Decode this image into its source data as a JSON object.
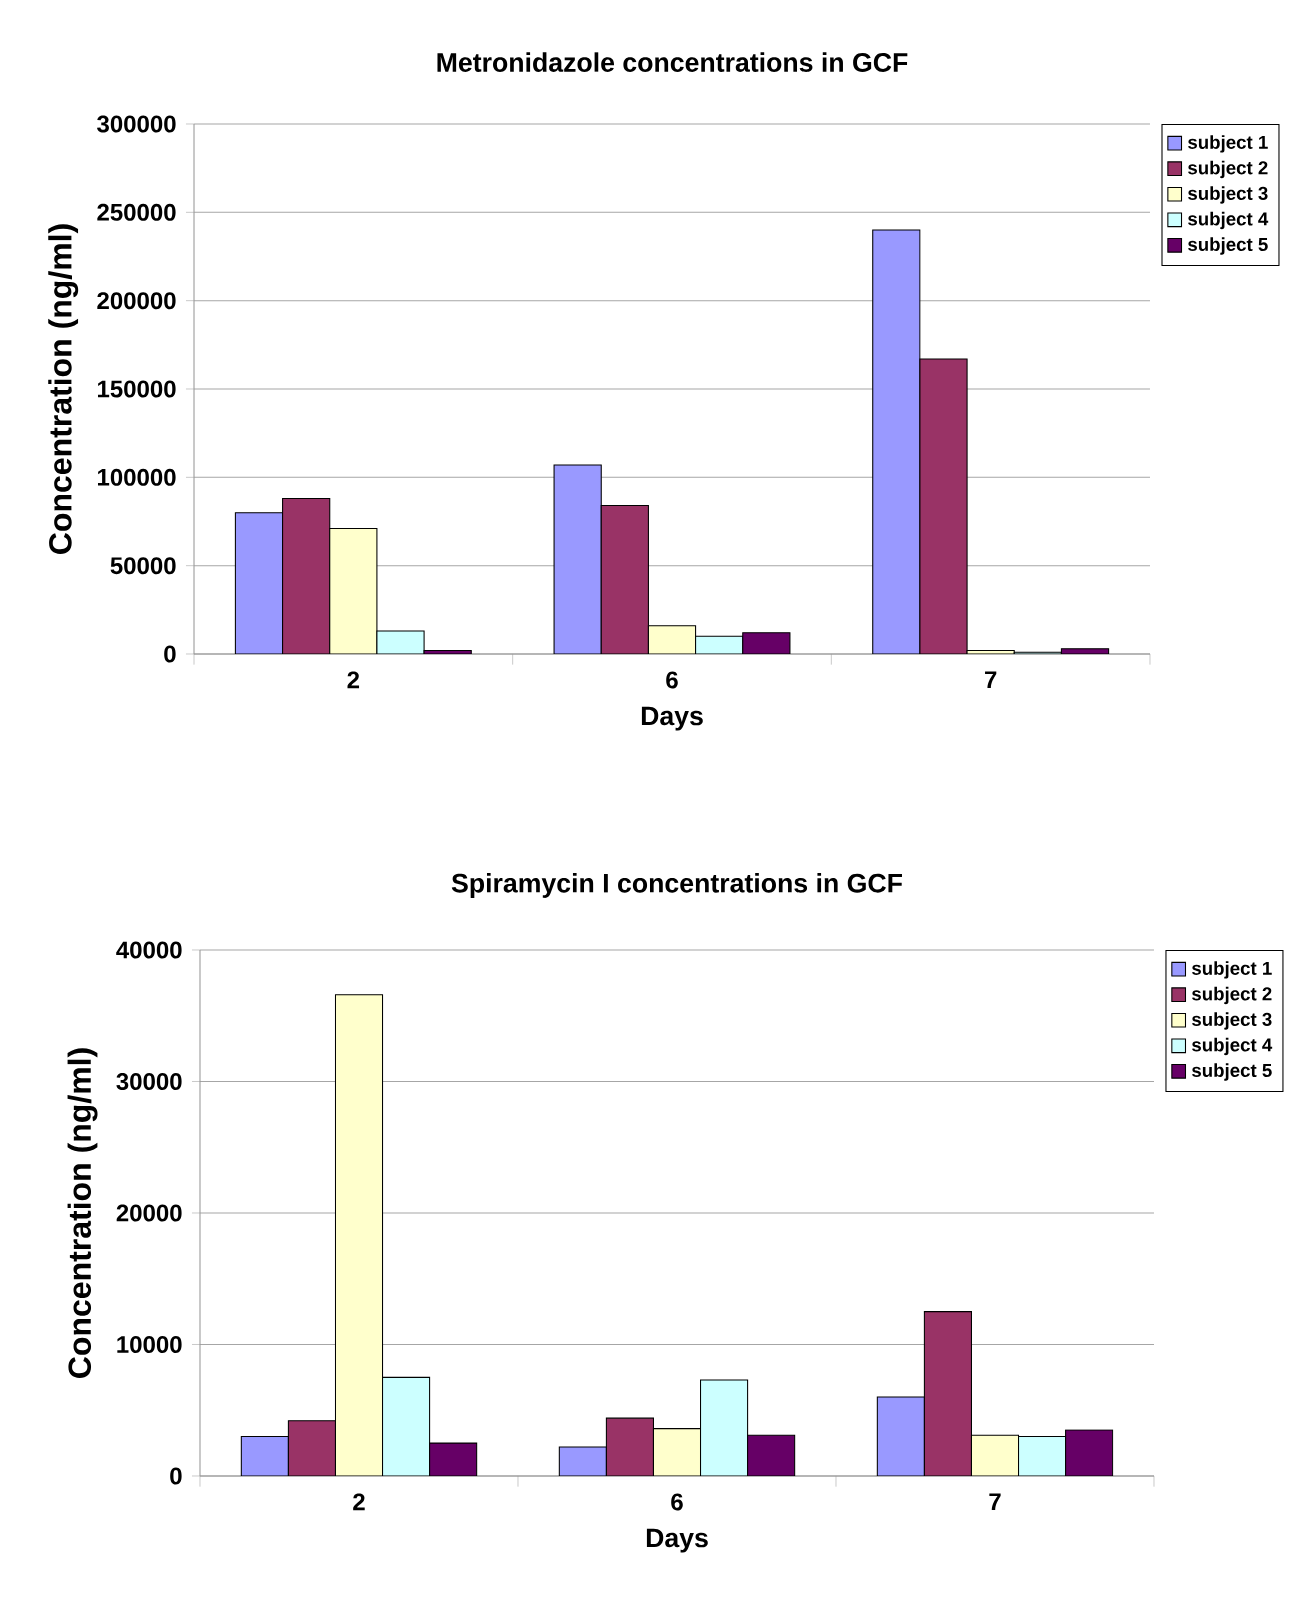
{
  "chart_data": [
    {
      "type": "bar",
      "title": "Metronidazole concentrations in GCF",
      "xlabel": "Days",
      "ylabel": "Concentration (ng/ml)",
      "categories": [
        "2",
        "6",
        "7"
      ],
      "series": [
        {
          "name": "subject 1",
          "color": "#9999ff",
          "values": [
            80000,
            107000,
            240000
          ]
        },
        {
          "name": "subject 2",
          "color": "#993366",
          "values": [
            88000,
            84000,
            167000
          ]
        },
        {
          "name": "subject 3",
          "color": "#ffffcc",
          "values": [
            71000,
            16000,
            2000
          ]
        },
        {
          "name": "subject 4",
          "color": "#ccffff",
          "values": [
            13000,
            10000,
            1000
          ]
        },
        {
          "name": "subject 5",
          "color": "#660066",
          "values": [
            2000,
            12000,
            3000
          ]
        }
      ],
      "ylim": [
        0,
        300000
      ],
      "yticks": [
        0,
        50000,
        100000,
        150000,
        200000,
        250000,
        300000
      ],
      "grid": "y",
      "legend": "right"
    },
    {
      "type": "bar",
      "title": "Spiramycin I concentrations in GCF",
      "xlabel": "Days",
      "ylabel": "Concentration (ng/ml)",
      "categories": [
        "2",
        "6",
        "7"
      ],
      "series": [
        {
          "name": "subject 1",
          "color": "#9999ff",
          "values": [
            3000,
            2200,
            6000
          ]
        },
        {
          "name": "subject 2",
          "color": "#993366",
          "values": [
            4200,
            4400,
            12500
          ]
        },
        {
          "name": "subject 3",
          "color": "#ffffcc",
          "values": [
            36600,
            3600,
            3100
          ]
        },
        {
          "name": "subject 4",
          "color": "#ccffff",
          "values": [
            7500,
            7300,
            3000
          ]
        },
        {
          "name": "subject 5",
          "color": "#660066",
          "values": [
            2500,
            3100,
            3500
          ]
        }
      ],
      "ylim": [
        0,
        40000
      ],
      "yticks": [
        0,
        10000,
        20000,
        30000,
        40000
      ],
      "grid": "y",
      "legend": "right"
    }
  ]
}
